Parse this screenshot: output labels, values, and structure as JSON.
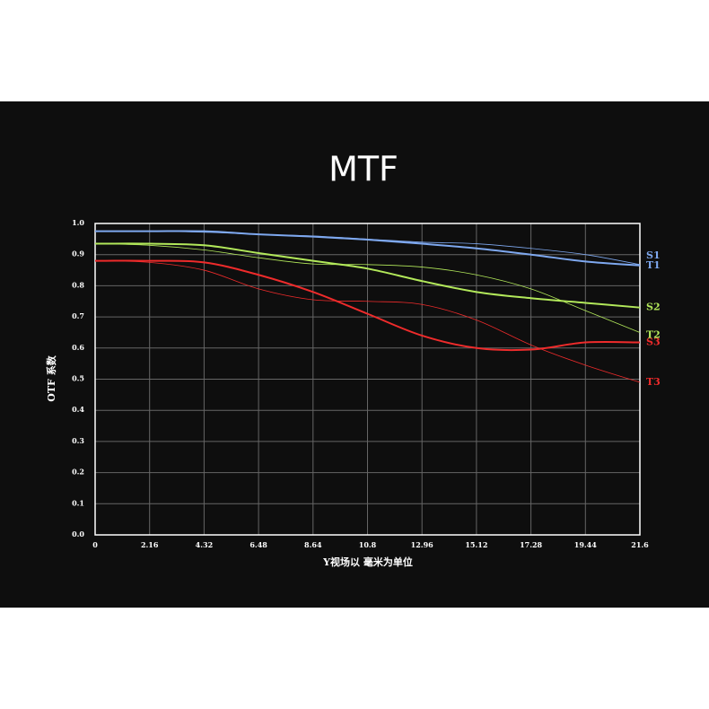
{
  "chart_data": {
    "type": "line",
    "title": "MTF",
    "xlabel": "Y视场以 毫米为单位",
    "ylabel": "OTF 系数",
    "x": [
      0,
      2.16,
      4.32,
      6.48,
      8.64,
      10.8,
      12.96,
      15.12,
      17.28,
      19.44,
      21.6
    ],
    "xlim": [
      0,
      21.6
    ],
    "xticks": [
      0,
      2.16,
      4.32,
      6.48,
      8.64,
      10.8,
      12.96,
      15.12,
      17.28,
      19.44,
      21.6
    ],
    "ylim": [
      0,
      1
    ],
    "yticks": [
      {
        "value": 0,
        "label": "0.0"
      },
      0.1,
      0.2,
      0.3,
      0.4,
      0.5,
      0.6,
      0.7,
      0.8,
      0.9,
      {
        "value": 1,
        "label": "1.0"
      }
    ],
    "grid": true,
    "series": [
      {
        "name": "S1",
        "color": "#7ea8ef",
        "values": [
          0.975,
          0.975,
          0.975,
          0.965,
          0.958,
          0.948,
          0.935,
          0.92,
          0.9,
          0.878,
          0.865
        ]
      },
      {
        "name": "T1",
        "color": "#7ea8ef",
        "values": [
          0.975,
          0.975,
          0.972,
          0.965,
          0.96,
          0.95,
          0.94,
          0.935,
          0.92,
          0.9,
          0.868
        ]
      },
      {
        "name": "S2",
        "color": "#b2e85a",
        "values": [
          0.935,
          0.935,
          0.93,
          0.905,
          0.88,
          0.855,
          0.815,
          0.78,
          0.76,
          0.745,
          0.73
        ]
      },
      {
        "name": "T2",
        "color": "#b2e85a",
        "values": [
          0.935,
          0.93,
          0.915,
          0.89,
          0.87,
          0.868,
          0.86,
          0.835,
          0.79,
          0.72,
          0.65
        ]
      },
      {
        "name": "S3",
        "color": "#ee2b2b",
        "values": [
          0.88,
          0.88,
          0.875,
          0.835,
          0.78,
          0.71,
          0.64,
          0.6,
          0.595,
          0.618,
          0.618
        ]
      },
      {
        "name": "T3",
        "color": "#ee2b2b",
        "values": [
          0.88,
          0.875,
          0.85,
          0.79,
          0.755,
          0.75,
          0.74,
          0.69,
          0.61,
          0.545,
          0.49
        ]
      }
    ]
  }
}
